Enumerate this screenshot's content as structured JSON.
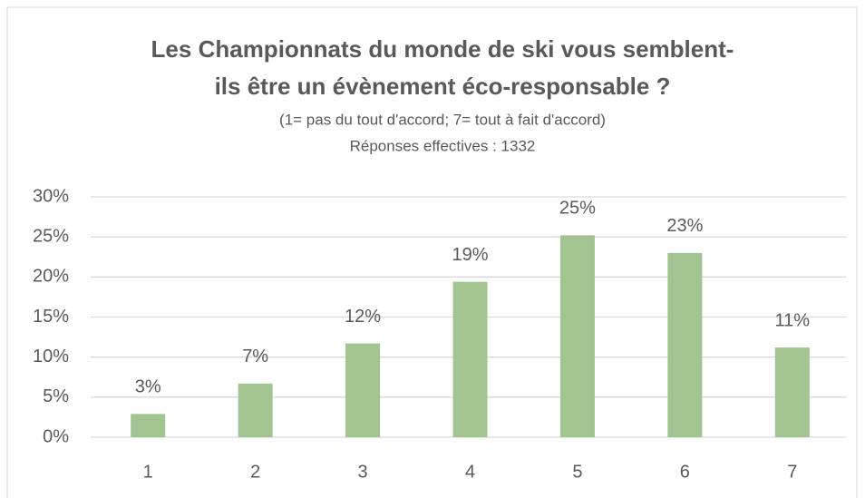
{
  "chart_data": {
    "type": "bar",
    "title": [
      "Les Championnats du monde de ski vous semblent-",
      "ils être un évènement éco-responsable ?"
    ],
    "subtitle": [
      "(1= pas du tout d'accord; 7= tout à fait d'accord)",
      "Réponses effectives : 1332"
    ],
    "categories": [
      "1",
      "2",
      "3",
      "4",
      "5",
      "6",
      "7"
    ],
    "values": [
      2.9,
      6.7,
      11.7,
      19.4,
      25.2,
      23.0,
      11.2
    ],
    "value_labels": [
      "3%",
      "7%",
      "12%",
      "19%",
      "25%",
      "23%",
      "11%"
    ],
    "color": "#a1c490",
    "ylim": [
      0,
      30
    ],
    "yticks": [
      {
        "value": 0,
        "label": "0%"
      },
      {
        "value": 5,
        "label": "5%"
      },
      {
        "value": 10,
        "label": "10%"
      },
      {
        "value": 15,
        "label": "15%"
      },
      {
        "value": 20,
        "label": "20%"
      },
      {
        "value": 25,
        "label": "25%"
      },
      {
        "value": 30,
        "label": "30%"
      }
    ],
    "grid": true
  }
}
